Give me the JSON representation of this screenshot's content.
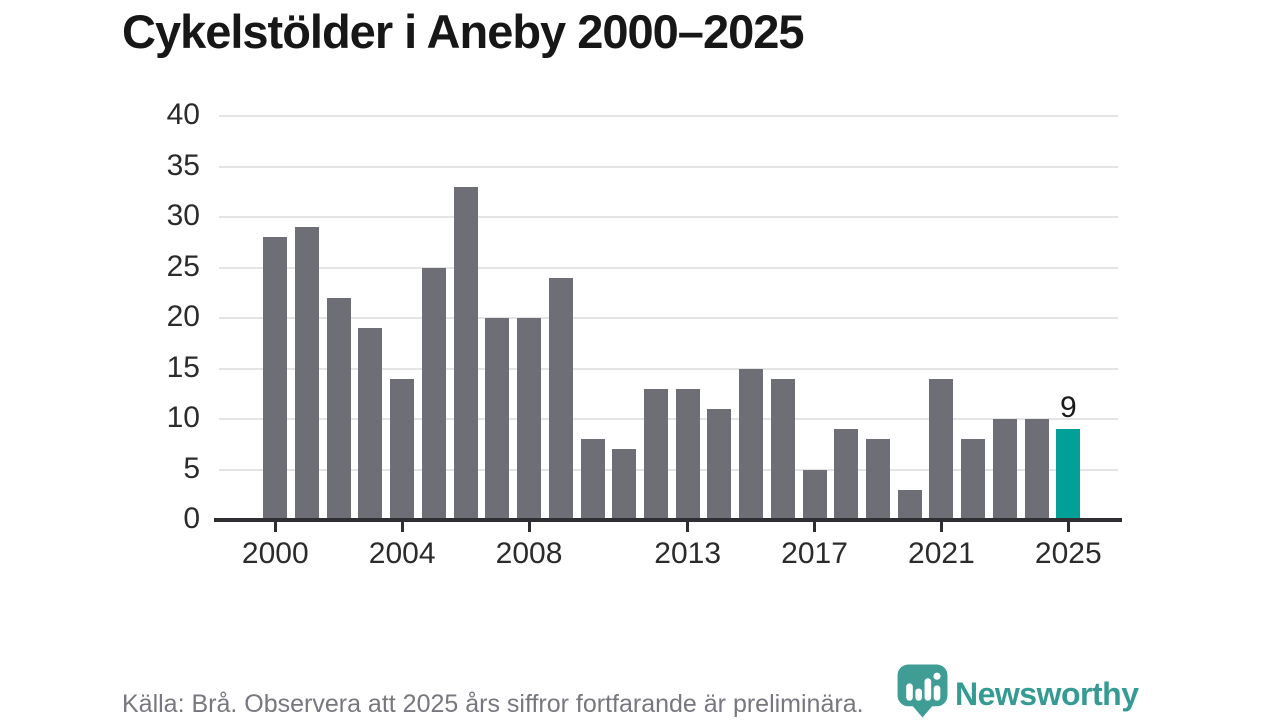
{
  "chart_data": {
    "type": "bar",
    "title": "Cykelstölder i Aneby 2000–2025",
    "categories": [
      2000,
      2001,
      2002,
      2003,
      2004,
      2005,
      2006,
      2007,
      2008,
      2009,
      2010,
      2011,
      2012,
      2013,
      2014,
      2015,
      2016,
      2017,
      2018,
      2019,
      2020,
      2021,
      2022,
      2023,
      2024,
      2025
    ],
    "values": [
      28,
      29,
      22,
      19,
      14,
      25,
      33,
      20,
      20,
      24,
      8,
      7,
      13,
      13,
      11,
      15,
      14,
      5,
      9,
      8,
      3,
      14,
      8,
      10,
      10,
      9
    ],
    "xlabel": "",
    "ylabel": "",
    "ylim": [
      0,
      40
    ],
    "y_ticks": [
      0,
      5,
      10,
      15,
      20,
      25,
      30,
      35,
      40
    ],
    "x_tick_labels": [
      2000,
      2004,
      2008,
      2013,
      2017,
      2021,
      2025
    ],
    "grid": "horizontal",
    "legend": "none",
    "bar_color": "#6e6e76",
    "highlight_index": 25,
    "highlight_color": "#00a099",
    "highlight_label": "9"
  },
  "footer": {
    "source_note": "Källa: Brå. Observera att 2025 års siffror fortfarande är preliminära."
  },
  "logo": {
    "brand": "Newsworthy",
    "icon": "bar-chart-bubble-icon",
    "icon_color": "#3f9d96",
    "text_color": "#359a92"
  }
}
